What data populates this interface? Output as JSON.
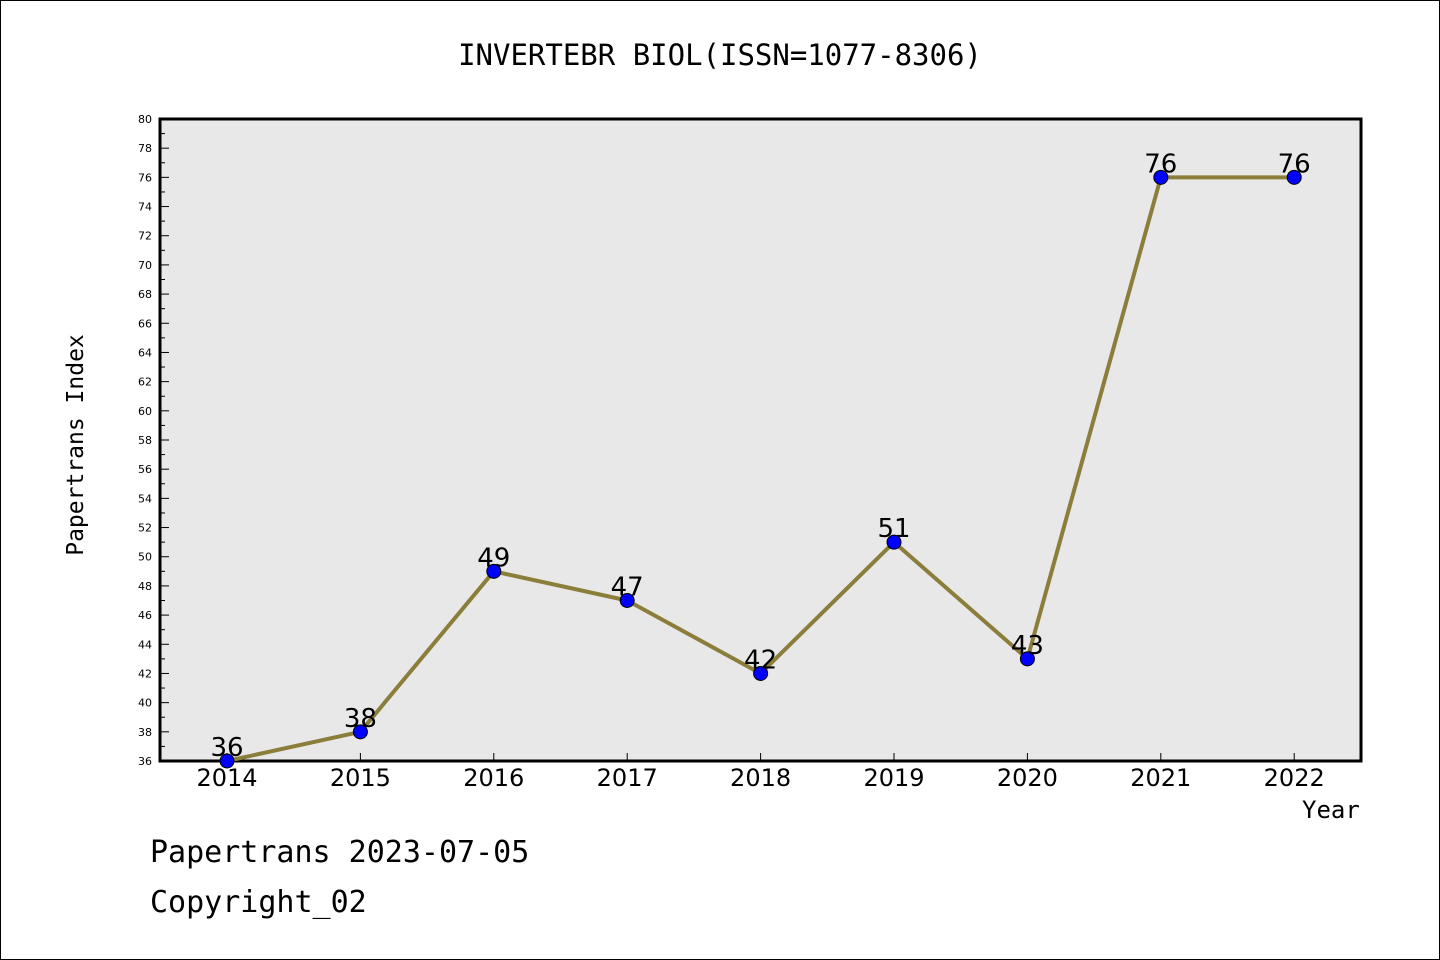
{
  "chart_data": {
    "type": "line",
    "title": "INVERTEBR BIOL(ISSN=1077-8306)",
    "xlabel": "Year",
    "ylabel": "Papertrans Index",
    "categories": [
      "2014",
      "2015",
      "2016",
      "2017",
      "2018",
      "2019",
      "2020",
      "2021",
      "2022"
    ],
    "series": [
      {
        "values": [
          36,
          38,
          49,
          47,
          42,
          51,
          43,
          76,
          76
        ]
      }
    ],
    "data_labels": [
      "36",
      "38",
      "49",
      "47",
      "42",
      "51",
      "43",
      "76",
      "76"
    ],
    "y_ticks": [
      "36",
      "38",
      "40",
      "42",
      "44",
      "46",
      "48",
      "50",
      "52",
      "54",
      "56",
      "58",
      "60",
      "62",
      "64",
      "66",
      "68",
      "70",
      "72",
      "74",
      "76",
      "78",
      "80"
    ],
    "ylim": [
      36,
      80
    ],
    "grid": false,
    "colors": {
      "line": "#8b7d3a",
      "marker": "#0000ff",
      "plot_bg": "#e8e8e8"
    }
  },
  "footer": {
    "date_text": "Papertrans 2023-07-05",
    "copyright_text": "Copyright_02"
  }
}
